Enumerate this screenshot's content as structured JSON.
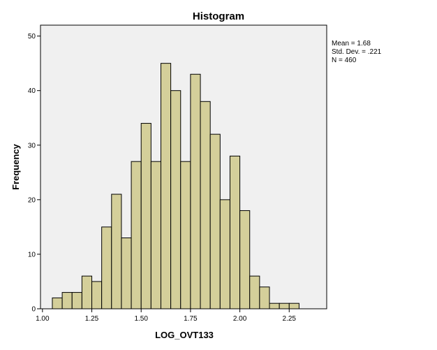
{
  "chart_data": {
    "type": "bar",
    "subtype": "histogram",
    "title": "Histogram",
    "xlabel": "LOG_OVT133",
    "ylabel": "Frequency",
    "xlim": [
      0.99,
      2.44
    ],
    "ylim": [
      0,
      52
    ],
    "bin_width": 0.05,
    "bins": [
      {
        "start": 1.05,
        "end": 1.1,
        "count": 2
      },
      {
        "start": 1.1,
        "end": 1.15,
        "count": 3
      },
      {
        "start": 1.15,
        "end": 1.2,
        "count": 3
      },
      {
        "start": 1.2,
        "end": 1.25,
        "count": 6
      },
      {
        "start": 1.25,
        "end": 1.3,
        "count": 5
      },
      {
        "start": 1.3,
        "end": 1.35,
        "count": 15
      },
      {
        "start": 1.35,
        "end": 1.4,
        "count": 21
      },
      {
        "start": 1.4,
        "end": 1.45,
        "count": 13
      },
      {
        "start": 1.45,
        "end": 1.5,
        "count": 27
      },
      {
        "start": 1.5,
        "end": 1.55,
        "count": 34
      },
      {
        "start": 1.55,
        "end": 1.6,
        "count": 27
      },
      {
        "start": 1.6,
        "end": 1.65,
        "count": 45
      },
      {
        "start": 1.65,
        "end": 1.7,
        "count": 40
      },
      {
        "start": 1.7,
        "end": 1.75,
        "count": 27
      },
      {
        "start": 1.75,
        "end": 1.8,
        "count": 43
      },
      {
        "start": 1.8,
        "end": 1.85,
        "count": 38
      },
      {
        "start": 1.85,
        "end": 1.9,
        "count": 32
      },
      {
        "start": 1.9,
        "end": 1.95,
        "count": 20
      },
      {
        "start": 1.95,
        "end": 2.0,
        "count": 28
      },
      {
        "start": 2.0,
        "end": 2.05,
        "count": 18
      },
      {
        "start": 2.05,
        "end": 2.1,
        "count": 6
      },
      {
        "start": 2.1,
        "end": 2.15,
        "count": 4
      },
      {
        "start": 2.15,
        "end": 2.2,
        "count": 1
      },
      {
        "start": 2.2,
        "end": 2.25,
        "count": 1
      },
      {
        "start": 2.25,
        "end": 2.3,
        "count": 1
      }
    ],
    "x_ticks": [
      {
        "value": 1.0,
        "label": "1.00"
      },
      {
        "value": 1.25,
        "label": "1.25"
      },
      {
        "value": 1.5,
        "label": "1.50"
      },
      {
        "value": 1.75,
        "label": "1.75"
      },
      {
        "value": 2.0,
        "label": "2.00"
      },
      {
        "value": 2.25,
        "label": "2.25"
      }
    ],
    "y_ticks": [
      {
        "value": 0,
        "label": "0"
      },
      {
        "value": 10,
        "label": "10"
      },
      {
        "value": 20,
        "label": "20"
      },
      {
        "value": 30,
        "label": "30"
      },
      {
        "value": 40,
        "label": "40"
      },
      {
        "value": 50,
        "label": "50"
      }
    ],
    "stats": [
      "Mean = 1.68",
      "Std. Dev. = .221",
      "N = 460"
    ],
    "grid": false,
    "colors": {
      "bar_fill": "#d4cf9a",
      "bar_stroke": "#000000",
      "plot_background": "#f0f0f0",
      "axis": "#000000"
    }
  }
}
